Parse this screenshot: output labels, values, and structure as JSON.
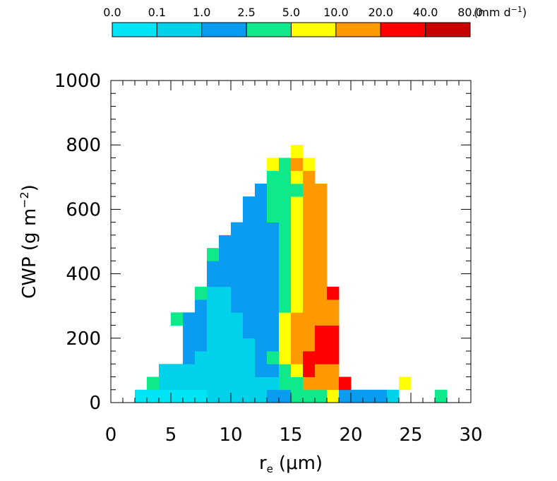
{
  "chart_data": {
    "type": "heatmap",
    "title": "",
    "xlabel": "r",
    "xlabel_sub": "e",
    "xlabel_unit": "(μm)",
    "ylabel": "CWP (g m",
    "ylabel_sup": "−2",
    "ylabel_close": ")",
    "xlim": [
      0,
      30
    ],
    "ylim": [
      0,
      1000
    ],
    "x_bin_width": 1,
    "y_bin_width": 40,
    "x_ticks": [
      "0",
      "5",
      "10",
      "15",
      "20",
      "25",
      "30"
    ],
    "y_ticks": [
      "0",
      "200",
      "400",
      "600",
      "800",
      "1000"
    ],
    "colorbar": {
      "levels": [
        "0.0",
        "0.1",
        "1.0",
        "2.5",
        "5.0",
        "10.0",
        "20.0",
        "40.0",
        "80.0"
      ],
      "colors": [
        "#00e5f5",
        "#00d2ea",
        "#0a9cf0",
        "#10e88c",
        "#ffff00",
        "#ff9900",
        "#ff0000",
        "#c80000"
      ],
      "unit_prefix": "(mm d",
      "unit_sup": "−1",
      "unit_suffix": ")",
      "placement": "top"
    },
    "cell_columns": [
      {
        "x": 2,
        "cells": [
          [
            0,
            0
          ]
        ]
      },
      {
        "x": 3,
        "cells": [
          [
            0,
            0
          ],
          [
            1,
            3
          ]
        ]
      },
      {
        "x": 4,
        "cells": [
          [
            0,
            0
          ],
          [
            1,
            1
          ],
          [
            2,
            1
          ]
        ]
      },
      {
        "x": 5,
        "cells": [
          [
            0,
            0
          ],
          [
            1,
            1
          ],
          [
            2,
            1
          ],
          [
            6,
            3
          ]
        ]
      },
      {
        "x": 6,
        "cells": [
          [
            0,
            0
          ],
          [
            1,
            1
          ],
          [
            2,
            1
          ],
          [
            3,
            2
          ],
          [
            4,
            2
          ],
          [
            5,
            2
          ],
          [
            6,
            2
          ]
        ]
      },
      {
        "x": 7,
        "cells": [
          [
            0,
            0
          ],
          [
            1,
            1
          ],
          [
            2,
            1
          ],
          [
            3,
            1
          ],
          [
            4,
            2
          ],
          [
            5,
            2
          ],
          [
            6,
            2
          ],
          [
            7,
            2
          ],
          [
            8,
            3
          ]
        ]
      },
      {
        "x": 8,
        "cells": [
          [
            0,
            1
          ],
          [
            1,
            1
          ],
          [
            2,
            1
          ],
          [
            3,
            1
          ],
          [
            4,
            1
          ],
          [
            5,
            1
          ],
          [
            6,
            1
          ],
          [
            7,
            1
          ],
          [
            8,
            1
          ],
          [
            9,
            2
          ],
          [
            10,
            2
          ],
          [
            11,
            3
          ]
        ]
      },
      {
        "x": 9,
        "cells": [
          [
            0,
            1
          ],
          [
            1,
            1
          ],
          [
            2,
            1
          ],
          [
            3,
            1
          ],
          [
            4,
            1
          ],
          [
            5,
            1
          ],
          [
            6,
            1
          ],
          [
            7,
            1
          ],
          [
            8,
            1
          ],
          [
            9,
            2
          ],
          [
            10,
            2
          ],
          [
            11,
            2
          ],
          [
            12,
            2
          ]
        ]
      },
      {
        "x": 10,
        "cells": [
          [
            0,
            1
          ],
          [
            1,
            1
          ],
          [
            2,
            1
          ],
          [
            3,
            1
          ],
          [
            4,
            1
          ],
          [
            5,
            1
          ],
          [
            6,
            1
          ],
          [
            7,
            2
          ],
          [
            8,
            2
          ],
          [
            9,
            2
          ],
          [
            10,
            2
          ],
          [
            11,
            2
          ],
          [
            12,
            2
          ],
          [
            13,
            2
          ]
        ]
      },
      {
        "x": 11,
        "cells": [
          [
            0,
            1
          ],
          [
            1,
            1
          ],
          [
            2,
            1
          ],
          [
            3,
            1
          ],
          [
            4,
            1
          ],
          [
            5,
            2
          ],
          [
            6,
            2
          ],
          [
            7,
            2
          ],
          [
            8,
            2
          ],
          [
            9,
            2
          ],
          [
            10,
            2
          ],
          [
            11,
            2
          ],
          [
            12,
            2
          ],
          [
            13,
            2
          ],
          [
            14,
            2
          ],
          [
            15,
            2
          ]
        ]
      },
      {
        "x": 12,
        "cells": [
          [
            0,
            1
          ],
          [
            1,
            1
          ],
          [
            2,
            2
          ],
          [
            3,
            2
          ],
          [
            4,
            2
          ],
          [
            5,
            2
          ],
          [
            6,
            2
          ],
          [
            7,
            2
          ],
          [
            8,
            2
          ],
          [
            9,
            2
          ],
          [
            10,
            2
          ],
          [
            11,
            2
          ],
          [
            12,
            2
          ],
          [
            13,
            2
          ],
          [
            14,
            2
          ],
          [
            15,
            2
          ],
          [
            16,
            2
          ]
        ]
      },
      {
        "x": 13,
        "cells": [
          [
            0,
            2
          ],
          [
            1,
            1
          ],
          [
            2,
            2
          ],
          [
            3,
            3
          ],
          [
            4,
            2
          ],
          [
            5,
            2
          ],
          [
            6,
            2
          ],
          [
            7,
            2
          ],
          [
            8,
            2
          ],
          [
            9,
            2
          ],
          [
            10,
            2
          ],
          [
            11,
            2
          ],
          [
            12,
            2
          ],
          [
            13,
            2
          ],
          [
            14,
            3
          ],
          [
            15,
            3
          ],
          [
            16,
            3
          ],
          [
            17,
            3
          ],
          [
            18,
            4
          ]
        ]
      },
      {
        "x": 14,
        "cells": [
          [
            0,
            2
          ],
          [
            1,
            3
          ],
          [
            2,
            3
          ],
          [
            3,
            4
          ],
          [
            4,
            4
          ],
          [
            5,
            4
          ],
          [
            6,
            4
          ],
          [
            7,
            3
          ],
          [
            8,
            3
          ],
          [
            9,
            3
          ],
          [
            10,
            3
          ],
          [
            11,
            3
          ],
          [
            12,
            3
          ],
          [
            13,
            3
          ],
          [
            14,
            3
          ],
          [
            15,
            3
          ],
          [
            16,
            3
          ],
          [
            17,
            3
          ],
          [
            18,
            3
          ]
        ]
      },
      {
        "x": 15,
        "cells": [
          [
            0,
            3
          ],
          [
            1,
            3
          ],
          [
            2,
            4
          ],
          [
            3,
            5
          ],
          [
            4,
            5
          ],
          [
            5,
            5
          ],
          [
            6,
            5
          ],
          [
            7,
            4
          ],
          [
            8,
            4
          ],
          [
            9,
            4
          ],
          [
            10,
            4
          ],
          [
            11,
            4
          ],
          [
            12,
            4
          ],
          [
            13,
            4
          ],
          [
            14,
            4
          ],
          [
            15,
            4
          ],
          [
            16,
            3
          ],
          [
            17,
            4
          ],
          [
            18,
            5
          ],
          [
            19,
            4
          ]
        ]
      },
      {
        "x": 16,
        "cells": [
          [
            0,
            3
          ],
          [
            1,
            5
          ],
          [
            2,
            6
          ],
          [
            3,
            6
          ],
          [
            4,
            5
          ],
          [
            5,
            5
          ],
          [
            6,
            5
          ],
          [
            7,
            5
          ],
          [
            8,
            5
          ],
          [
            9,
            5
          ],
          [
            10,
            5
          ],
          [
            11,
            5
          ],
          [
            12,
            5
          ],
          [
            13,
            5
          ],
          [
            14,
            5
          ],
          [
            15,
            5
          ],
          [
            16,
            5
          ],
          [
            17,
            5
          ],
          [
            18,
            4
          ]
        ]
      },
      {
        "x": 17,
        "cells": [
          [
            0,
            3
          ],
          [
            1,
            5
          ],
          [
            2,
            5
          ],
          [
            3,
            6
          ],
          [
            4,
            6
          ],
          [
            5,
            6
          ],
          [
            6,
            5
          ],
          [
            7,
            5
          ],
          [
            8,
            5
          ],
          [
            9,
            5
          ],
          [
            10,
            5
          ],
          [
            11,
            5
          ],
          [
            12,
            5
          ],
          [
            13,
            5
          ],
          [
            14,
            5
          ],
          [
            15,
            5
          ],
          [
            16,
            5
          ]
        ]
      },
      {
        "x": 18,
        "cells": [
          [
            0,
            4
          ],
          [
            1,
            5
          ],
          [
            2,
            5
          ],
          [
            3,
            6
          ],
          [
            4,
            6
          ],
          [
            5,
            6
          ],
          [
            6,
            5
          ],
          [
            7,
            5
          ],
          [
            8,
            6
          ]
        ]
      },
      {
        "x": 19,
        "cells": [
          [
            0,
            2
          ],
          [
            1,
            6
          ]
        ]
      },
      {
        "x": 20,
        "cells": [
          [
            0,
            2
          ]
        ]
      },
      {
        "x": 21,
        "cells": [
          [
            0,
            2
          ]
        ]
      },
      {
        "x": 22,
        "cells": [
          [
            0,
            2
          ]
        ]
      },
      {
        "x": 23,
        "cells": [
          [
            0,
            1
          ]
        ]
      },
      {
        "x": 24,
        "cells": [
          [
            1,
            4
          ]
        ]
      },
      {
        "x": 27,
        "cells": [
          [
            0,
            3
          ]
        ]
      }
    ]
  }
}
